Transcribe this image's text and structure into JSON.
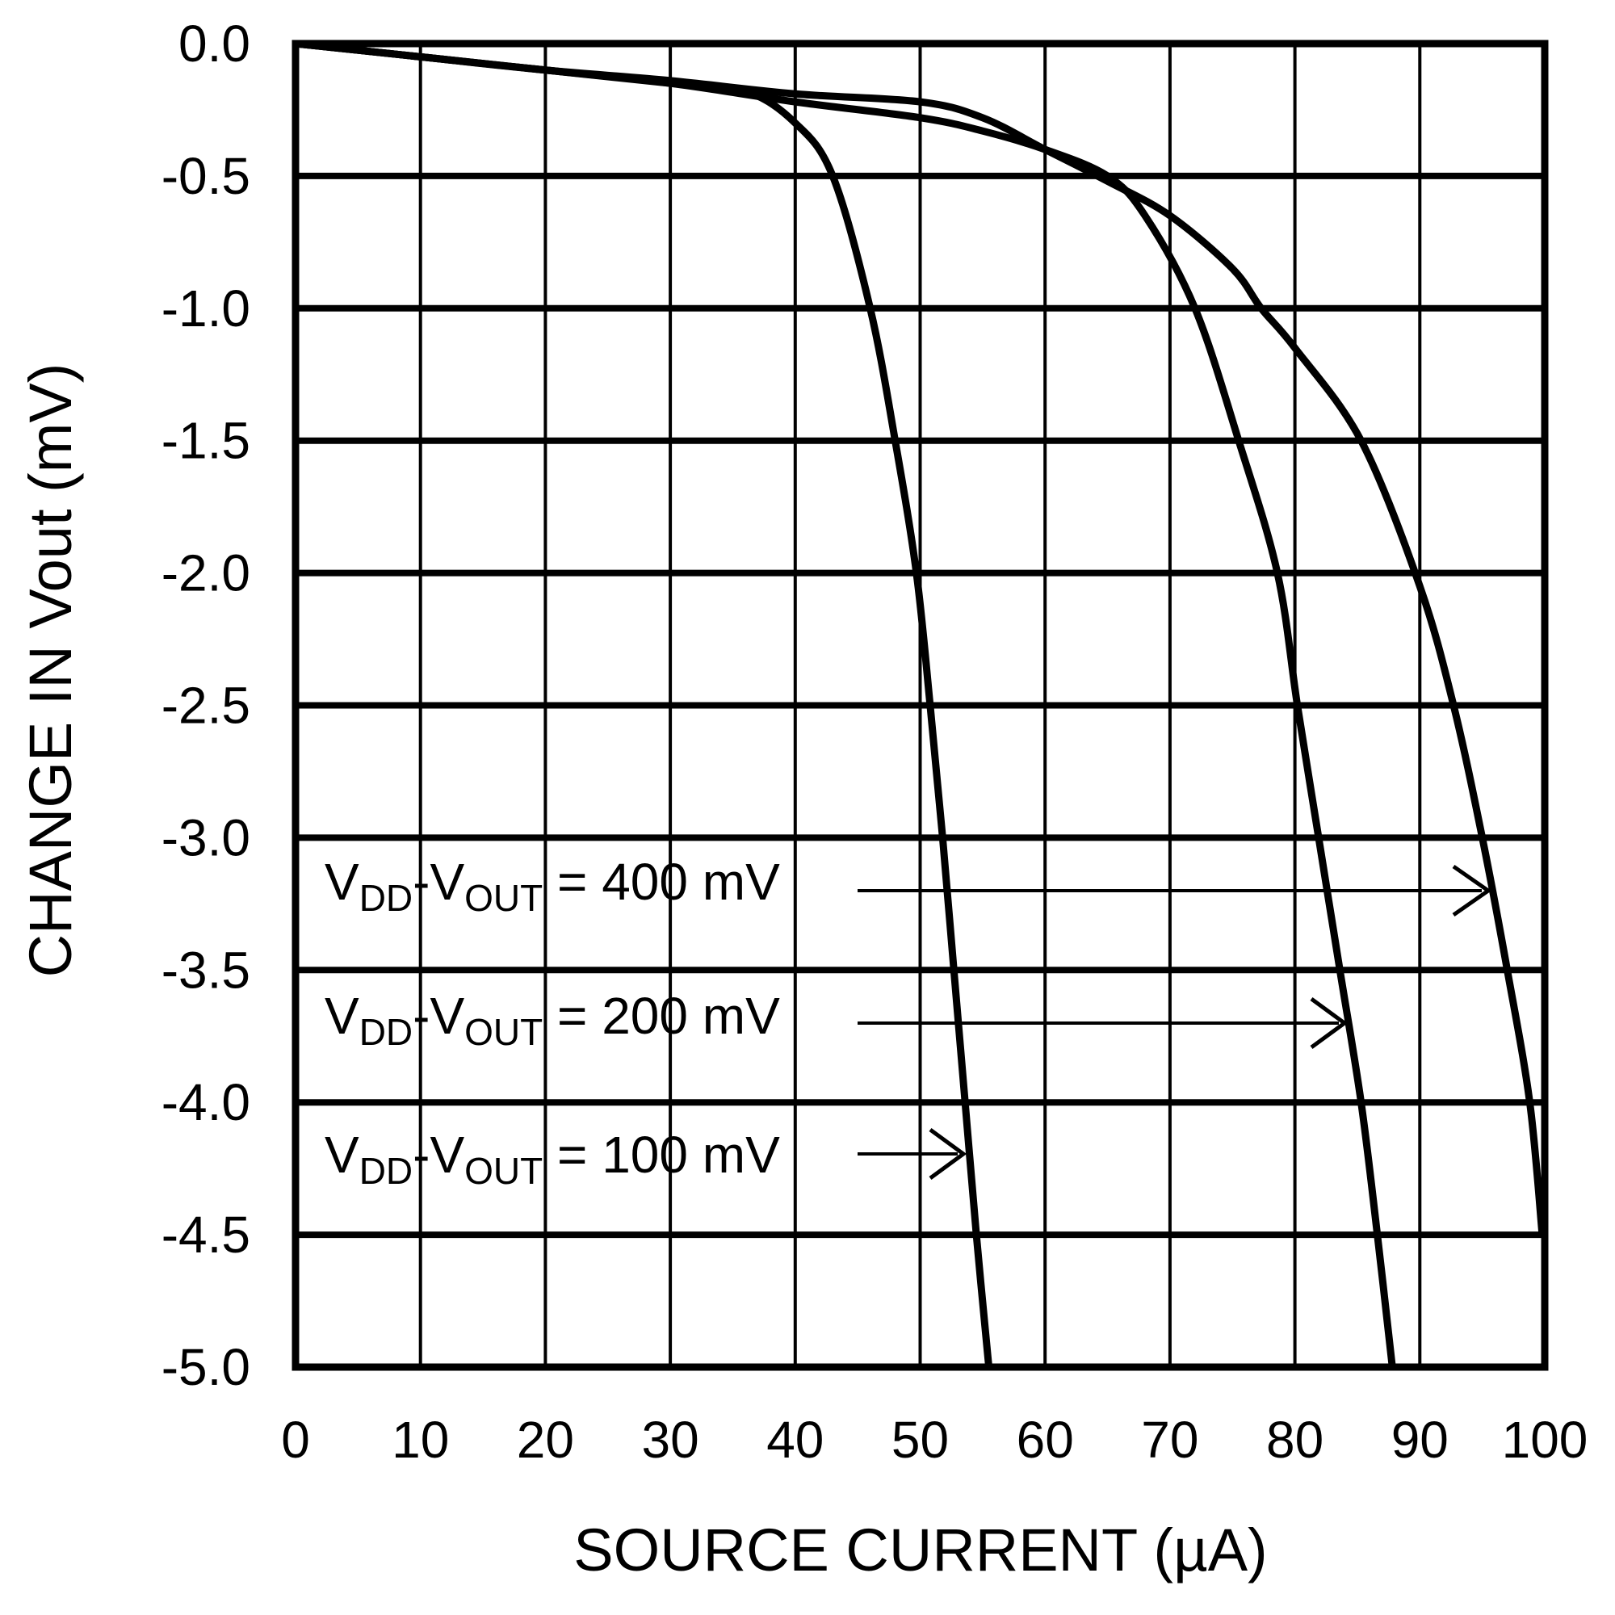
{
  "chart_data": {
    "type": "line",
    "title": "",
    "xlabel": "SOURCE CURRENT (µA)",
    "ylabel": "CHANGE IN Vout (mV)",
    "xlim": [
      0,
      100
    ],
    "ylim": [
      -5.0,
      0.0
    ],
    "xticks": [
      "0",
      "10",
      "20",
      "30",
      "40",
      "50",
      "60",
      "70",
      "80",
      "90",
      "100"
    ],
    "yticks": [
      "0.0",
      "-0.5",
      "-1.0",
      "-1.5",
      "-2.0",
      "-2.5",
      "-3.0",
      "-3.5",
      "-4.0",
      "-4.5",
      "-5.0"
    ],
    "grid": true,
    "line_color": "#000000",
    "series": [
      {
        "name": "VDD-VOUT = 100 mV",
        "x": [
          0,
          10,
          20,
          30,
          36,
          40,
          43,
          46,
          48,
          49.7,
          50.8,
          51.8,
          52.7,
          53.6,
          54.5,
          55.5
        ],
        "y": [
          0,
          -0.05,
          -0.1,
          -0.15,
          -0.18,
          -0.3,
          -0.5,
          -1.0,
          -1.5,
          -2.0,
          -2.5,
          -3.0,
          -3.5,
          -4.0,
          -4.5,
          -5.0
        ]
      },
      {
        "name": "VDD-VOUT = 200 mV",
        "x": [
          0,
          10,
          20,
          30,
          40,
          50,
          55,
          60,
          65,
          68,
          72,
          75.5,
          78.6,
          80.2,
          81.9,
          83.6,
          85.3,
          86.6,
          87.8
        ],
        "y": [
          0,
          -0.05,
          -0.1,
          -0.15,
          -0.22,
          -0.28,
          -0.33,
          -0.4,
          -0.5,
          -0.65,
          -1.0,
          -1.5,
          -2.0,
          -2.5,
          -3.0,
          -3.5,
          -4.0,
          -4.5,
          -5.0
        ]
      },
      {
        "name": "VDD-VOUT = 400 mV",
        "x": [
          0,
          10,
          20,
          30,
          40,
          50,
          55,
          60,
          65,
          70,
          75,
          77.3,
          80,
          85.3,
          90,
          92.7,
          95,
          97,
          98.8,
          99.8
        ],
        "y": [
          0,
          -0.05,
          -0.1,
          -0.14,
          -0.19,
          -0.22,
          -0.28,
          -0.4,
          -0.52,
          -0.65,
          -0.85,
          -1.0,
          -1.15,
          -1.5,
          -2.05,
          -2.5,
          -3.0,
          -3.5,
          -4.0,
          -4.5
        ]
      }
    ],
    "annotations": [
      {
        "v": "V",
        "sub1": "DD",
        "mid": "-V",
        "sub2": "OUT",
        "rest": " = 400 mV"
      },
      {
        "v": "V",
        "sub1": "DD",
        "mid": "-V",
        "sub2": "OUT",
        "rest": " = 200 mV"
      },
      {
        "v": "V",
        "sub1": "DD",
        "mid": "-V",
        "sub2": "OUT",
        "rest": " = 100 mV"
      }
    ]
  }
}
